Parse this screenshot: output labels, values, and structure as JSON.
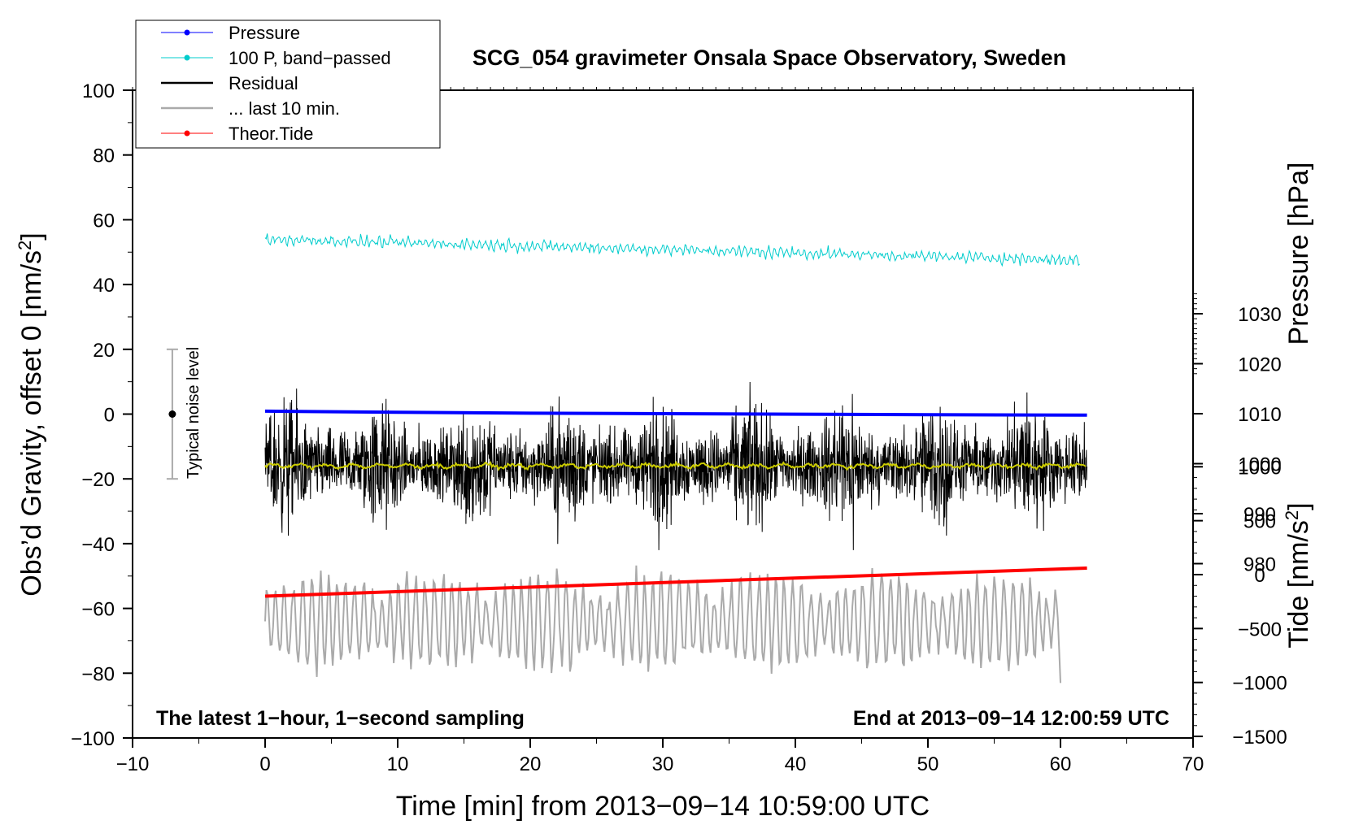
{
  "chart_data": {
    "type": "line",
    "title": "SCG_054 gravimeter Onsala Space Observatory, Sweden",
    "xlabel": "Time [min] from 2013−09−14 10:59:00 UTC",
    "ylabel_left": "Obs’d Gravity, offset 0 [nm/s",
    "ylabel_left_sup": "2",
    "ylabel_left_end": "]",
    "ylabel_right_pressure": "Pressure [hPa]",
    "ylabel_right_tide": "Tide [nm/s",
    "ylabel_right_tide_sup": "2",
    "ylabel_right_tide_end": "]",
    "xlim": [
      -10,
      70
    ],
    "ylim": [
      -100,
      100
    ],
    "pressure_ylim": [
      980,
      1030
    ],
    "tide_ylim": [
      -1500,
      1000
    ],
    "xticks": [
      "−10",
      "0",
      "10",
      "20",
      "30",
      "40",
      "50",
      "60",
      "70"
    ],
    "xtick_values": [
      -10,
      0,
      10,
      20,
      30,
      40,
      50,
      60,
      70
    ],
    "yticks": [
      "−100",
      "−80",
      "−60",
      "−40",
      "−20",
      "0",
      "20",
      "40",
      "60",
      "80",
      "100"
    ],
    "ytick_values": [
      -100,
      -80,
      -60,
      -40,
      -20,
      0,
      20,
      40,
      60,
      80,
      100
    ],
    "pressure_ticks": [
      "980",
      "990",
      "1000",
      "1010",
      "1020",
      "1030"
    ],
    "pressure_tick_values": [
      980,
      990,
      1000,
      1010,
      1020,
      1030
    ],
    "tide_ticks": [
      "−1500",
      "−1000",
      "−500",
      "0",
      "500",
      "1000"
    ],
    "tide_tick_values": [
      -1500,
      -1000,
      -500,
      0,
      500,
      1000
    ],
    "legend": [
      "Pressure",
      "100 P, band−passed",
      "Residual",
      "... last 10 min.",
      "Theor.Tide"
    ],
    "noise_label": "Typical noise level",
    "noise_bar": {
      "x": -7,
      "center": 0,
      "low": -20,
      "high": 20
    },
    "annotation_left": "The latest 1−hour, 1−second sampling",
    "annotation_right": "End at 2013−09−14 12:00:59 UTC",
    "series": [
      {
        "name": "Pressure",
        "color": "#0000ff",
        "axis": "pressure",
        "x": [
          0,
          10,
          20,
          30,
          40,
          50,
          62
        ],
        "values": [
          1010.5,
          1010.3,
          1010.1,
          1010.0,
          1009.9,
          1009.8,
          1009.7
        ]
      },
      {
        "name": "100 P, band-passed",
        "color": "#00cccc",
        "axis": "left",
        "mean_start": 54,
        "mean_end": 47.5,
        "amplitude": 1.5
      },
      {
        "name": "Residual",
        "color": "#000000",
        "axis": "left",
        "mean": -16,
        "amplitude": 10,
        "extremes": [
          -42,
          12
        ]
      },
      {
        "name": "Residual smoothed",
        "color": "#cccc00",
        "axis": "left",
        "mean": -16
      },
      {
        "name": "... last 10 min.",
        "color": "#aaaaaa",
        "axis": "left",
        "mean": -64,
        "amplitude": 14,
        "extremes": [
          -82,
          -41
        ]
      },
      {
        "name": "Theor.Tide",
        "color": "#ff0000",
        "axis": "tide",
        "x": [
          0,
          62
        ],
        "values": [
          -200,
          60
        ]
      }
    ]
  }
}
